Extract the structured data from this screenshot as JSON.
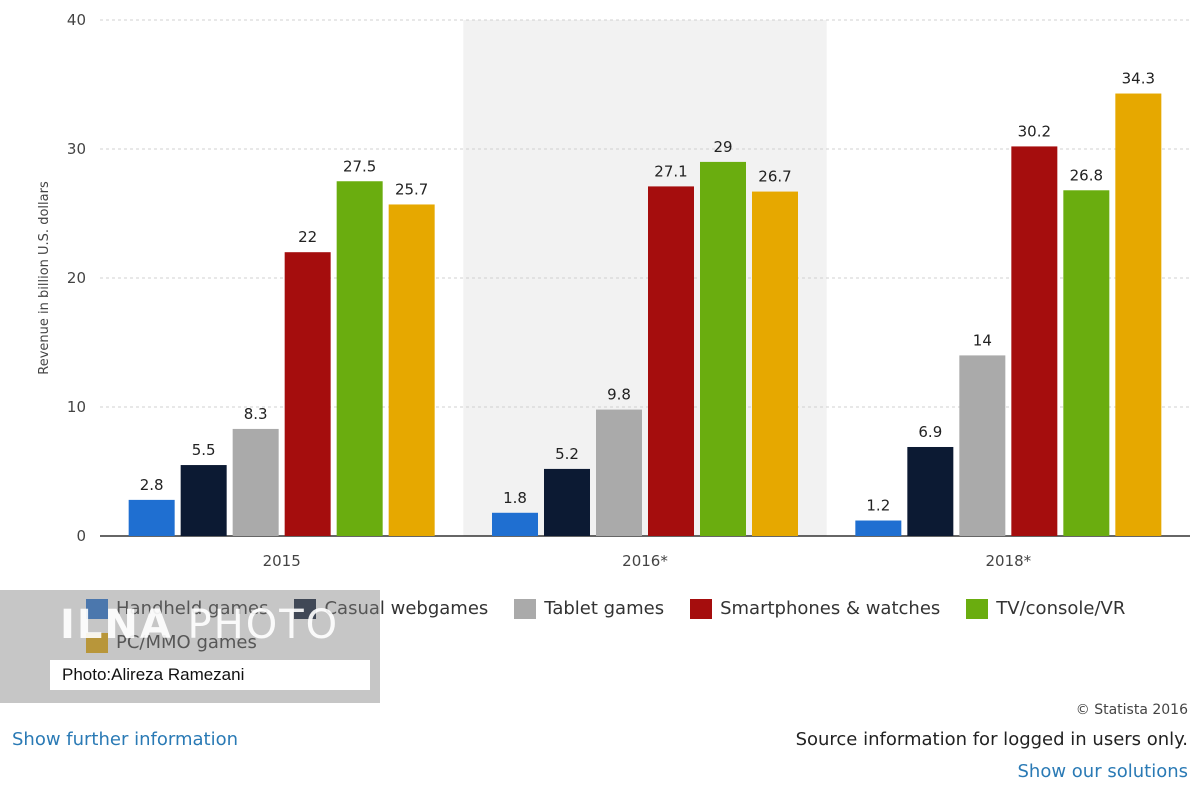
{
  "chart_data": {
    "type": "bar",
    "categories": [
      "2015",
      "2016*",
      "2018*"
    ],
    "series": [
      {
        "name": "Handheld games",
        "color": "#1f6fd1",
        "values": [
          2.8,
          1.8,
          1.2
        ]
      },
      {
        "name": "Casual webgames",
        "color": "#0c1a33",
        "values": [
          5.5,
          5.2,
          6.9
        ]
      },
      {
        "name": "Tablet games",
        "color": "#aaaaaa",
        "values": [
          8.3,
          9.8,
          14
        ]
      },
      {
        "name": "Smartphones & watches",
        "color": "#a50d0d",
        "values": [
          22,
          27.1,
          30.2
        ]
      },
      {
        "name": "TV/console/VR",
        "color": "#6aad0f",
        "values": [
          27.5,
          29,
          26.8
        ]
      },
      {
        "name": "PC/MMO games",
        "color": "#e6a800",
        "values": [
          25.7,
          26.7,
          34.3
        ]
      }
    ],
    "value_labels": [
      [
        "2.8",
        "1.8",
        "1.2"
      ],
      [
        "5.5",
        "5.2",
        "6.9"
      ],
      [
        "8.3",
        "9.8",
        "14"
      ],
      [
        "22",
        "27.1",
        "30.2"
      ],
      [
        "27.5",
        "29",
        "26.8"
      ],
      [
        "25.7",
        "26.7",
        "34.3"
      ]
    ],
    "ylabel": "Revenue in billion U.S. dollars",
    "ylim": [
      0,
      40
    ],
    "yticks": [
      "0",
      "10",
      "20",
      "30",
      "40"
    ],
    "grid": true,
    "highlighted_category": "2016*",
    "legend_position": "bottom"
  },
  "watermark": {
    "logo_bold": "ILNA",
    "logo_thin": " PHOTO",
    "credit": "Photo:Alireza Ramezani"
  },
  "footer": {
    "copyright": "© Statista 2016",
    "show_further": "Show further information",
    "source_note": "Source information for logged in users only.",
    "show_solutions": "Show our solutions"
  }
}
